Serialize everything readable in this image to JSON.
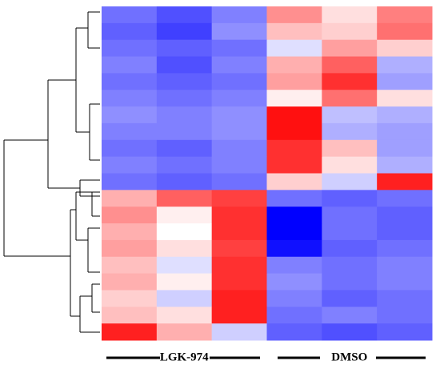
{
  "chart_data": {
    "type": "heatmap",
    "groups": [
      "LGK-974",
      "DMSO"
    ],
    "values": [
      [
        -0.9,
        -1.1,
        -0.8,
        0.7,
        0.2,
        0.8
      ],
      [
        -1.0,
        -1.2,
        -0.7,
        0.4,
        0.3,
        0.9
      ],
      [
        -0.9,
        -1.0,
        -0.9,
        -0.2,
        0.6,
        0.3
      ],
      [
        -0.8,
        -1.1,
        -0.8,
        0.5,
        1.0,
        -0.5
      ],
      [
        -0.9,
        -1.0,
        -0.9,
        0.6,
        1.3,
        -0.6
      ],
      [
        -0.8,
        -0.9,
        -0.8,
        0.1,
        0.9,
        0.2
      ],
      [
        -0.7,
        -0.8,
        -0.7,
        1.5,
        -0.4,
        -0.5
      ],
      [
        -0.8,
        -0.8,
        -0.7,
        1.5,
        -0.5,
        -0.6
      ],
      [
        -0.9,
        -1.0,
        -0.8,
        1.3,
        0.4,
        -0.6
      ],
      [
        -0.8,
        -0.9,
        -0.8,
        1.3,
        0.2,
        -0.5
      ],
      [
        -0.9,
        -1.0,
        -0.9,
        0.3,
        -0.3,
        1.4
      ],
      [
        0.5,
        1.0,
        1.2,
        -0.9,
        -1.0,
        -0.9
      ],
      [
        0.7,
        0.1,
        1.3,
        -1.6,
        -0.9,
        -1.0
      ],
      [
        0.5,
        0.0,
        1.3,
        -1.7,
        -0.9,
        -1.0
      ],
      [
        0.6,
        0.2,
        1.2,
        -1.5,
        -1.0,
        -0.9
      ],
      [
        0.4,
        -0.2,
        1.3,
        -0.8,
        -0.9,
        -0.8
      ],
      [
        0.5,
        0.1,
        1.3,
        -0.7,
        -0.9,
        -0.8
      ],
      [
        0.3,
        -0.3,
        1.4,
        -0.8,
        -1.0,
        -0.9
      ],
      [
        0.4,
        0.2,
        1.4,
        -0.9,
        -0.8,
        -0.9
      ],
      [
        1.4,
        0.5,
        -0.3,
        -1.0,
        -1.1,
        -1.0
      ]
    ],
    "color_scale": {
      "low": "#0000ff",
      "mid": "#ffffff",
      "high": "#ff0000",
      "range": [
        -1.6,
        1.6
      ]
    }
  }
}
